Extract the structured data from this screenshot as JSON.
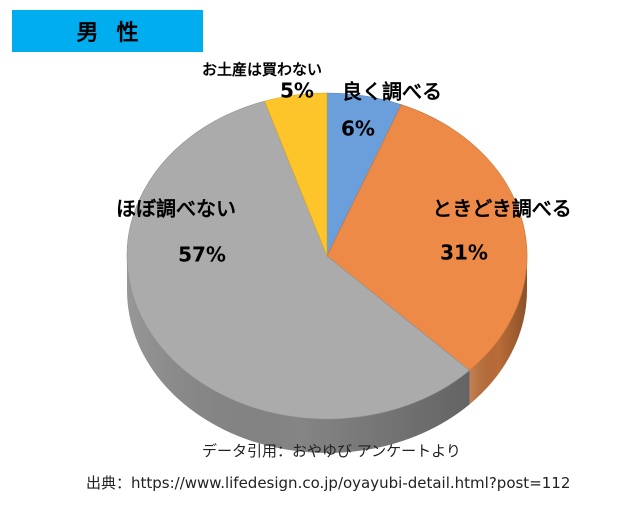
{
  "title": "男性",
  "chart_data": {
    "type": "pie",
    "style": "3d",
    "start": "top",
    "direction": "clockwise",
    "slices": [
      {
        "label": "良く調べる",
        "value": 6,
        "value_label": "6%",
        "color": "#6a9fdb"
      },
      {
        "label": "ときどき調べる",
        "value": 31,
        "value_label": "31%",
        "color": "#ed8a47"
      },
      {
        "label": "ほぼ調べない",
        "value": 57,
        "value_label": "57%",
        "color": "#ababab"
      },
      {
        "label": "お土産は買わない",
        "value": 5,
        "value_label": "5%",
        "color": "#fdc52a"
      }
    ]
  },
  "footer": {
    "data_credit": "データ引用：おやゆび アンケートより",
    "source": "出典：https://www.lifedesign.co.jp/oyayubi-detail.html?post=112"
  }
}
